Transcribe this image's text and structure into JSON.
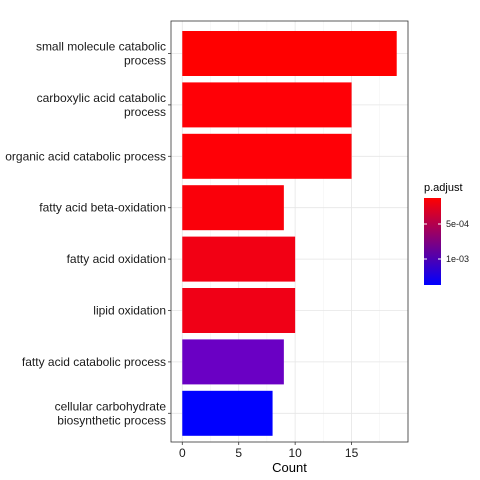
{
  "chart_data": {
    "type": "bar",
    "orientation": "horizontal",
    "categories": [
      [
        "small molecule catabolic",
        "process"
      ],
      [
        "carboxylic acid catabolic",
        "process"
      ],
      [
        "organic acid catabolic process"
      ],
      [
        "fatty acid beta-oxidation"
      ],
      [
        "fatty acid oxidation"
      ],
      [
        "lipid oxidation"
      ],
      [
        "fatty acid catabolic process"
      ],
      [
        "cellular carbohydrate",
        "biosynthetic process"
      ]
    ],
    "values": [
      19,
      15,
      15,
      9,
      10,
      10,
      9,
      8
    ],
    "colors": [
      "#ff0000",
      "#ff0006",
      "#ff0006",
      "#fa000a",
      "#f20014",
      "#f00016",
      "#6a00c4",
      "#0000ff"
    ],
    "xlabel": "Count",
    "ylabel": "",
    "xlim": [
      -1,
      20
    ],
    "xticks": [
      0,
      5,
      10,
      15
    ],
    "grid": true,
    "legend": {
      "title": "p.adjust",
      "position": "right",
      "gradient_colors": [
        "#ff0000",
        "#0000ff"
      ],
      "ticks": [
        "5e-04",
        "1e-03"
      ]
    }
  }
}
